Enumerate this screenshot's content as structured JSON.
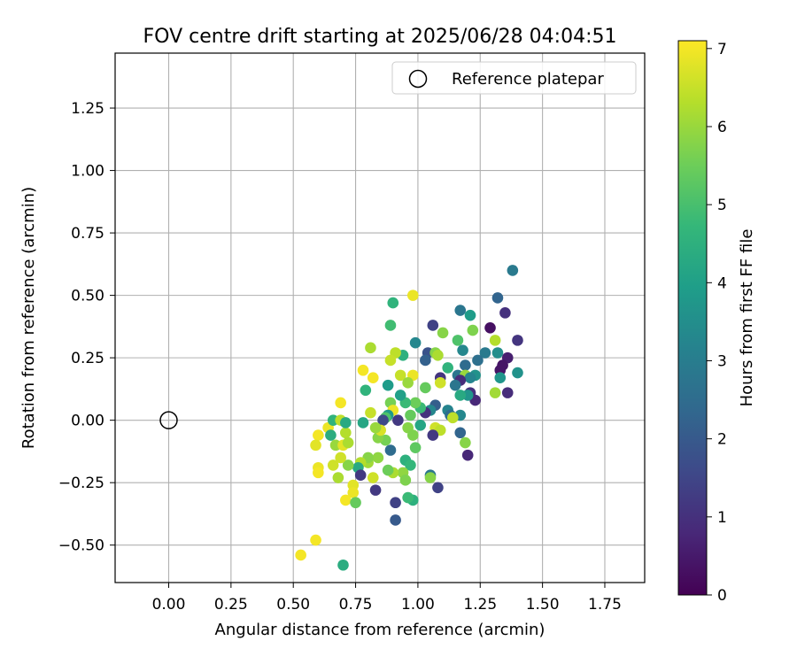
{
  "chart_data": {
    "type": "scatter",
    "title": "FOV centre drift starting at 2025/06/28 04:04:51",
    "xlabel": "Angular distance from reference (arcmin)",
    "ylabel": "Rotation from reference (arcmin)",
    "xlim": [
      -0.215,
      1.91
    ],
    "ylim": [
      -0.65,
      1.47
    ],
    "xticks": [
      0.0,
      0.25,
      0.5,
      0.75,
      1.0,
      1.25,
      1.5,
      1.75
    ],
    "xtick_labels": [
      "0.00",
      "0.25",
      "0.50",
      "0.75",
      "1.00",
      "1.25",
      "1.50",
      "1.75"
    ],
    "yticks": [
      -0.5,
      -0.25,
      0.0,
      0.25,
      0.5,
      0.75,
      1.0,
      1.25
    ],
    "ytick_labels": [
      "−0.50",
      "−0.25",
      "0.00",
      "0.25",
      "0.50",
      "0.75",
      "1.00",
      "1.25"
    ],
    "grid": true,
    "legend": {
      "placement": "top-right",
      "entries": [
        "Reference platepar"
      ]
    },
    "reference_point": {
      "x": 0.0,
      "y": 0.0,
      "label": "Reference platepar"
    },
    "colorbar": {
      "label": "Hours from first FF file",
      "min": 0,
      "max": 7.1,
      "ticks": [
        0,
        1,
        2,
        3,
        4,
        5,
        6,
        7
      ],
      "tick_labels": [
        "0",
        "1",
        "2",
        "3",
        "4",
        "5",
        "6",
        "7"
      ],
      "colormap": "viridis",
      "colormap_stops": [
        "#440154",
        "#482878",
        "#3e4989",
        "#31688e",
        "#26828e",
        "#1f9e89",
        "#35b779",
        "#6ece58",
        "#b5de2b",
        "#fde725"
      ]
    },
    "points": [
      {
        "x": 1.38,
        "y": 0.6,
        "h": 2.9
      },
      {
        "x": 1.32,
        "y": 0.49,
        "h": 2.3
      },
      {
        "x": 1.35,
        "y": 0.43,
        "h": 1.0
      },
      {
        "x": 1.17,
        "y": 0.44,
        "h": 2.8
      },
      {
        "x": 1.21,
        "y": 0.42,
        "h": 3.9
      },
      {
        "x": 1.29,
        "y": 0.37,
        "h": 0.3
      },
      {
        "x": 1.22,
        "y": 0.36,
        "h": 5.7
      },
      {
        "x": 1.1,
        "y": 0.35,
        "h": 5.8
      },
      {
        "x": 1.06,
        "y": 0.38,
        "h": 1.4
      },
      {
        "x": 1.31,
        "y": 0.32,
        "h": 6.3
      },
      {
        "x": 1.4,
        "y": 0.32,
        "h": 1.1
      },
      {
        "x": 1.16,
        "y": 0.32,
        "h": 5.1
      },
      {
        "x": 1.18,
        "y": 0.28,
        "h": 3.3
      },
      {
        "x": 1.27,
        "y": 0.27,
        "h": 2.9
      },
      {
        "x": 1.32,
        "y": 0.27,
        "h": 3.5
      },
      {
        "x": 1.36,
        "y": 0.25,
        "h": 0.6
      },
      {
        "x": 1.24,
        "y": 0.24,
        "h": 2.6
      },
      {
        "x": 1.34,
        "y": 0.22,
        "h": 0.4
      },
      {
        "x": 1.04,
        "y": 0.27,
        "h": 1.8
      },
      {
        "x": 1.07,
        "y": 0.27,
        "h": 5.8
      },
      {
        "x": 1.08,
        "y": 0.26,
        "h": 6.2
      },
      {
        "x": 1.03,
        "y": 0.24,
        "h": 2.2
      },
      {
        "x": 1.12,
        "y": 0.21,
        "h": 4.6
      },
      {
        "x": 1.19,
        "y": 0.22,
        "h": 2.5
      },
      {
        "x": 1.4,
        "y": 0.19,
        "h": 3.6
      },
      {
        "x": 1.33,
        "y": 0.2,
        "h": 0.4
      },
      {
        "x": 1.23,
        "y": 0.18,
        "h": 3.6
      },
      {
        "x": 1.16,
        "y": 0.18,
        "h": 2.8
      },
      {
        "x": 1.19,
        "y": 0.18,
        "h": 6.0
      },
      {
        "x": 1.21,
        "y": 0.17,
        "h": 3.2
      },
      {
        "x": 1.33,
        "y": 0.17,
        "h": 3.7
      },
      {
        "x": 1.09,
        "y": 0.17,
        "h": 1.1
      },
      {
        "x": 1.17,
        "y": 0.16,
        "h": 0.9
      },
      {
        "x": 1.15,
        "y": 0.14,
        "h": 2.8
      },
      {
        "x": 1.09,
        "y": 0.15,
        "h": 6.6
      },
      {
        "x": 1.03,
        "y": 0.13,
        "h": 5.4
      },
      {
        "x": 0.99,
        "y": 0.31,
        "h": 3.3
      },
      {
        "x": 0.94,
        "y": 0.26,
        "h": 4.5
      },
      {
        "x": 0.91,
        "y": 0.27,
        "h": 6.4
      },
      {
        "x": 0.89,
        "y": 0.24,
        "h": 6.5
      },
      {
        "x": 0.9,
        "y": 0.47,
        "h": 4.6
      },
      {
        "x": 0.89,
        "y": 0.38,
        "h": 4.9
      },
      {
        "x": 0.98,
        "y": 0.5,
        "h": 6.9
      },
      {
        "x": 0.81,
        "y": 0.29,
        "h": 6.2
      },
      {
        "x": 0.78,
        "y": 0.2,
        "h": 7.0
      },
      {
        "x": 0.82,
        "y": 0.17,
        "h": 7.0
      },
      {
        "x": 0.79,
        "y": 0.12,
        "h": 4.6
      },
      {
        "x": 0.88,
        "y": 0.14,
        "h": 3.9
      },
      {
        "x": 0.93,
        "y": 0.18,
        "h": 6.5
      },
      {
        "x": 0.98,
        "y": 0.18,
        "h": 6.9
      },
      {
        "x": 0.96,
        "y": 0.15,
        "h": 6.0
      },
      {
        "x": 1.21,
        "y": 0.11,
        "h": 1.0
      },
      {
        "x": 1.23,
        "y": 0.08,
        "h": 0.8
      },
      {
        "x": 1.31,
        "y": 0.11,
        "h": 6.1
      },
      {
        "x": 1.36,
        "y": 0.11,
        "h": 0.9
      },
      {
        "x": 1.2,
        "y": 0.1,
        "h": 3.7
      },
      {
        "x": 1.17,
        "y": 0.1,
        "h": 4.3
      },
      {
        "x": 1.12,
        "y": 0.04,
        "h": 3.2
      },
      {
        "x": 1.13,
        "y": 0.02,
        "h": 2.5
      },
      {
        "x": 1.17,
        "y": 0.02,
        "h": 3.3
      },
      {
        "x": 1.14,
        "y": 0.01,
        "h": 6.4
      },
      {
        "x": 1.07,
        "y": 0.06,
        "h": 2.1
      },
      {
        "x": 1.05,
        "y": 0.04,
        "h": 3.3
      },
      {
        "x": 1.03,
        "y": 0.03,
        "h": 1.0
      },
      {
        "x": 1.01,
        "y": 0.05,
        "h": 4.8
      },
      {
        "x": 0.99,
        "y": 0.07,
        "h": 5.5
      },
      {
        "x": 0.95,
        "y": 0.07,
        "h": 4.8
      },
      {
        "x": 0.97,
        "y": 0.02,
        "h": 5.4
      },
      {
        "x": 0.93,
        "y": 0.1,
        "h": 4.0
      },
      {
        "x": 0.89,
        "y": 0.07,
        "h": 5.6
      },
      {
        "x": 0.9,
        "y": 0.04,
        "h": 6.9
      },
      {
        "x": 0.88,
        "y": 0.02,
        "h": 3.8
      },
      {
        "x": 0.87,
        "y": 0.01,
        "h": 5.1
      },
      {
        "x": 0.86,
        "y": 0.0,
        "h": 1.6
      },
      {
        "x": 0.92,
        "y": 0.0,
        "h": 1.2
      },
      {
        "x": 1.01,
        "y": -0.02,
        "h": 4.2
      },
      {
        "x": 1.07,
        "y": -0.03,
        "h": 6.6
      },
      {
        "x": 1.09,
        "y": -0.04,
        "h": 6.4
      },
      {
        "x": 1.06,
        "y": -0.06,
        "h": 1.2
      },
      {
        "x": 1.17,
        "y": -0.05,
        "h": 2.3
      },
      {
        "x": 1.19,
        "y": -0.09,
        "h": 5.8
      },
      {
        "x": 1.2,
        "y": -0.14,
        "h": 0.8
      },
      {
        "x": 0.96,
        "y": -0.03,
        "h": 5.8
      },
      {
        "x": 0.98,
        "y": -0.06,
        "h": 5.7
      },
      {
        "x": 0.99,
        "y": -0.11,
        "h": 5.3
      },
      {
        "x": 0.89,
        "y": -0.12,
        "h": 2.5
      },
      {
        "x": 0.87,
        "y": -0.08,
        "h": 5.6
      },
      {
        "x": 0.84,
        "y": -0.07,
        "h": 5.8
      },
      {
        "x": 0.85,
        "y": -0.04,
        "h": 6.7
      },
      {
        "x": 0.83,
        "y": -0.03,
        "h": 6.0
      },
      {
        "x": 0.81,
        "y": 0.03,
        "h": 6.5
      },
      {
        "x": 0.84,
        "y": -0.15,
        "h": 5.9
      },
      {
        "x": 0.95,
        "y": -0.16,
        "h": 4.5
      },
      {
        "x": 0.97,
        "y": -0.18,
        "h": 4.7
      },
      {
        "x": 1.05,
        "y": -0.22,
        "h": 2.8
      },
      {
        "x": 1.05,
        "y": -0.23,
        "h": 5.8
      },
      {
        "x": 0.94,
        "y": -0.21,
        "h": 5.9
      },
      {
        "x": 0.9,
        "y": -0.21,
        "h": 6.2
      },
      {
        "x": 0.95,
        "y": -0.24,
        "h": 5.7
      },
      {
        "x": 0.88,
        "y": -0.2,
        "h": 5.5
      },
      {
        "x": 0.82,
        "y": -0.23,
        "h": 6.6
      },
      {
        "x": 0.8,
        "y": -0.17,
        "h": 6.1
      },
      {
        "x": 0.8,
        "y": -0.15,
        "h": 5.8
      },
      {
        "x": 0.77,
        "y": -0.17,
        "h": 6.3
      },
      {
        "x": 0.76,
        "y": -0.19,
        "h": 4.3
      },
      {
        "x": 0.77,
        "y": -0.22,
        "h": 1.2
      },
      {
        "x": 0.72,
        "y": -0.18,
        "h": 5.8
      },
      {
        "x": 0.69,
        "y": -0.15,
        "h": 6.6
      },
      {
        "x": 0.66,
        "y": -0.18,
        "h": 6.6
      },
      {
        "x": 0.68,
        "y": -0.23,
        "h": 6.2
      },
      {
        "x": 0.74,
        "y": -0.26,
        "h": 6.8
      },
      {
        "x": 0.74,
        "y": -0.29,
        "h": 6.9
      },
      {
        "x": 0.71,
        "y": -0.32,
        "h": 7.0
      },
      {
        "x": 0.75,
        "y": -0.33,
        "h": 5.4
      },
      {
        "x": 0.83,
        "y": -0.28,
        "h": 1.2
      },
      {
        "x": 0.91,
        "y": -0.33,
        "h": 1.4
      },
      {
        "x": 0.91,
        "y": -0.4,
        "h": 2.0
      },
      {
        "x": 0.98,
        "y": -0.32,
        "h": 4.5
      },
      {
        "x": 0.96,
        "y": -0.31,
        "h": 4.8
      },
      {
        "x": 1.08,
        "y": -0.27,
        "h": 1.4
      },
      {
        "x": 0.6,
        "y": -0.19,
        "h": 6.9
      },
      {
        "x": 0.6,
        "y": -0.21,
        "h": 7.0
      },
      {
        "x": 0.6,
        "y": -0.06,
        "h": 7.0
      },
      {
        "x": 0.59,
        "y": -0.1,
        "h": 6.8
      },
      {
        "x": 0.64,
        "y": -0.03,
        "h": 6.9
      },
      {
        "x": 0.65,
        "y": -0.06,
        "h": 4.4
      },
      {
        "x": 0.67,
        "y": -0.1,
        "h": 6.0
      },
      {
        "x": 0.7,
        "y": -0.1,
        "h": 6.8
      },
      {
        "x": 0.71,
        "y": -0.05,
        "h": 6.3
      },
      {
        "x": 0.72,
        "y": -0.09,
        "h": 6.2
      },
      {
        "x": 0.66,
        "y": 0.0,
        "h": 4.6
      },
      {
        "x": 0.69,
        "y": 0.0,
        "h": 6.4
      },
      {
        "x": 0.69,
        "y": 0.07,
        "h": 7.0
      },
      {
        "x": 0.71,
        "y": -0.01,
        "h": 4.3
      },
      {
        "x": 0.78,
        "y": -0.01,
        "h": 4.2
      },
      {
        "x": 0.59,
        "y": -0.48,
        "h": 7.0
      },
      {
        "x": 0.53,
        "y": -0.54,
        "h": 7.0
      },
      {
        "x": 0.7,
        "y": -0.58,
        "h": 4.4
      }
    ]
  }
}
